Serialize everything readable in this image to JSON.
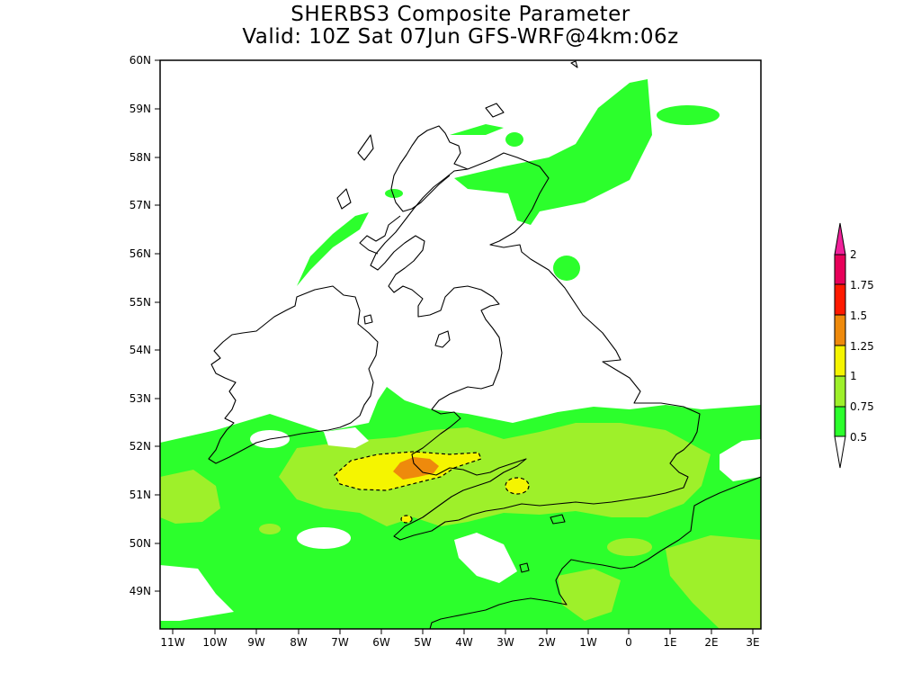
{
  "title": {
    "line1": "SHERBS3 Composite Parameter",
    "line2": "Valid: 10Z Sat 07Jun GFS-WRF@4km:06z"
  },
  "map": {
    "latitude_labels": [
      "60N",
      "59N",
      "58N",
      "57N",
      "56N",
      "55N",
      "54N",
      "53N",
      "52N",
      "51N",
      "50N",
      "49N"
    ],
    "longitude_labels": [
      "11W",
      "10W",
      "9W",
      "8W",
      "7W",
      "6W",
      "5W",
      "4W",
      "3W",
      "2W",
      "1W",
      "0",
      "1E",
      "2E",
      "3E"
    ]
  },
  "legend": {
    "labels": [
      "0.5",
      "0.75",
      "1",
      "1.25",
      "1.5",
      "1.75",
      "2"
    ],
    "colors": [
      "#2cff2c",
      "#9ef02a",
      "#f5f500",
      "#ee8a0c",
      "#ff1a00",
      "#e8005a",
      "#f0209a"
    ]
  }
}
